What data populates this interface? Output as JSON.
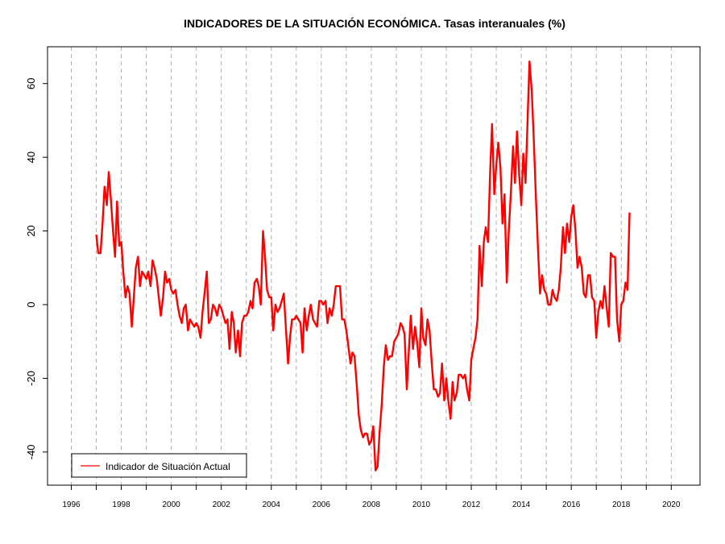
{
  "chart_data": {
    "type": "line",
    "title": "INDICADORES DE LA SITUACIÓN ECONÓMICA. Tasas interanuales (%)",
    "xlabel": "",
    "ylabel": "",
    "xlim": [
      1995.05,
      2021.15
    ],
    "ylim": [
      -49,
      70
    ],
    "x_ticks": [
      1996,
      1997,
      1998,
      1999,
      2000,
      2001,
      2002,
      2003,
      2004,
      2005,
      2006,
      2007,
      2008,
      2009,
      2010,
      2011,
      2012,
      2013,
      2014,
      2015,
      2016,
      2017,
      2018,
      2019,
      2020
    ],
    "x_tick_labels": [
      "1996",
      "1998",
      "2000",
      "2002",
      "2004",
      "2006",
      "2008",
      "2010",
      "2012",
      "2014",
      "2016",
      "2018",
      "2020"
    ],
    "y_ticks": [
      -40,
      -20,
      0,
      20,
      40,
      60
    ],
    "y_tick_labels": [
      "-40",
      "-20",
      "0",
      "20",
      "40",
      "60"
    ],
    "grid": "vertical dashed at each year",
    "legend": {
      "position": "bottom-left",
      "entries": [
        "Indicador de Situación Actual"
      ]
    },
    "series": [
      {
        "name": "Indicador de Situación Actual",
        "color": "#ff0000",
        "points": [
          [
            1997.0,
            19
          ],
          [
            1997.08,
            14
          ],
          [
            1997.17,
            14
          ],
          [
            1997.25,
            22
          ],
          [
            1997.33,
            32
          ],
          [
            1997.42,
            27
          ],
          [
            1997.5,
            36
          ],
          [
            1997.58,
            29
          ],
          [
            1997.67,
            20
          ],
          [
            1997.75,
            13
          ],
          [
            1997.83,
            28
          ],
          [
            1997.92,
            16
          ],
          [
            1998.0,
            17
          ],
          [
            1998.08,
            9
          ],
          [
            1998.17,
            2
          ],
          [
            1998.25,
            5
          ],
          [
            1998.33,
            3
          ],
          [
            1998.42,
            -6
          ],
          [
            1998.5,
            2
          ],
          [
            1998.58,
            10
          ],
          [
            1998.67,
            13
          ],
          [
            1998.75,
            5
          ],
          [
            1998.83,
            9
          ],
          [
            1998.92,
            8
          ],
          [
            1999.0,
            7
          ],
          [
            1999.08,
            9
          ],
          [
            1999.17,
            5
          ],
          [
            1999.25,
            12
          ],
          [
            1999.33,
            10
          ],
          [
            1999.42,
            7
          ],
          [
            1999.5,
            2
          ],
          [
            1999.58,
            -3
          ],
          [
            1999.67,
            2
          ],
          [
            1999.75,
            9
          ],
          [
            1999.83,
            6
          ],
          [
            1999.92,
            7
          ],
          [
            2000.0,
            4
          ],
          [
            2000.08,
            3
          ],
          [
            2000.17,
            4
          ],
          [
            2000.25,
            0
          ],
          [
            2000.33,
            -3
          ],
          [
            2000.42,
            -5
          ],
          [
            2000.5,
            -1
          ],
          [
            2000.58,
            0
          ],
          [
            2000.67,
            -7
          ],
          [
            2000.75,
            -4
          ],
          [
            2000.83,
            -5
          ],
          [
            2000.92,
            -6
          ],
          [
            2001.0,
            -5
          ],
          [
            2001.08,
            -6
          ],
          [
            2001.17,
            -9
          ],
          [
            2001.25,
            -2
          ],
          [
            2001.33,
            3
          ],
          [
            2001.42,
            9
          ],
          [
            2001.5,
            -5
          ],
          [
            2001.58,
            -4
          ],
          [
            2001.67,
            0
          ],
          [
            2001.75,
            -1
          ],
          [
            2001.83,
            -3
          ],
          [
            2001.92,
            0
          ],
          [
            2002.0,
            -1
          ],
          [
            2002.08,
            -3
          ],
          [
            2002.17,
            -5
          ],
          [
            2002.25,
            -4
          ],
          [
            2002.33,
            -12
          ],
          [
            2002.42,
            -2
          ],
          [
            2002.5,
            -5
          ],
          [
            2002.58,
            -13
          ],
          [
            2002.67,
            -7
          ],
          [
            2002.75,
            -14
          ],
          [
            2002.83,
            -5
          ],
          [
            2002.92,
            -3
          ],
          [
            2003.0,
            -3
          ],
          [
            2003.08,
            -2
          ],
          [
            2003.17,
            1
          ],
          [
            2003.25,
            -1
          ],
          [
            2003.33,
            6
          ],
          [
            2003.42,
            7
          ],
          [
            2003.5,
            5
          ],
          [
            2003.58,
            0
          ],
          [
            2003.67,
            20
          ],
          [
            2003.75,
            13
          ],
          [
            2003.83,
            4
          ],
          [
            2003.92,
            2
          ],
          [
            2004.0,
            2
          ],
          [
            2004.08,
            -7
          ],
          [
            2004.17,
            0
          ],
          [
            2004.25,
            -2
          ],
          [
            2004.33,
            -1
          ],
          [
            2004.42,
            1
          ],
          [
            2004.5,
            3
          ],
          [
            2004.58,
            -6
          ],
          [
            2004.67,
            -16
          ],
          [
            2004.75,
            -9
          ],
          [
            2004.83,
            -4
          ],
          [
            2004.92,
            -4
          ],
          [
            2005.0,
            -3
          ],
          [
            2005.08,
            -4
          ],
          [
            2005.17,
            -5
          ],
          [
            2005.25,
            -13
          ],
          [
            2005.33,
            -1
          ],
          [
            2005.42,
            -7
          ],
          [
            2005.5,
            -3
          ],
          [
            2005.58,
            0
          ],
          [
            2005.67,
            -4
          ],
          [
            2005.75,
            -5
          ],
          [
            2005.83,
            -6
          ],
          [
            2005.92,
            1
          ],
          [
            2006.0,
            1
          ],
          [
            2006.08,
            0
          ],
          [
            2006.17,
            1
          ],
          [
            2006.25,
            -5
          ],
          [
            2006.33,
            -1
          ],
          [
            2006.42,
            -3
          ],
          [
            2006.5,
            0
          ],
          [
            2006.58,
            5
          ],
          [
            2006.67,
            5
          ],
          [
            2006.75,
            5
          ],
          [
            2006.83,
            -4
          ],
          [
            2006.92,
            -4
          ],
          [
            2007.0,
            -7
          ],
          [
            2007.08,
            -11
          ],
          [
            2007.17,
            -16
          ],
          [
            2007.25,
            -13
          ],
          [
            2007.33,
            -14
          ],
          [
            2007.42,
            -22
          ],
          [
            2007.5,
            -30
          ],
          [
            2007.58,
            -34
          ],
          [
            2007.67,
            -36
          ],
          [
            2007.75,
            -35
          ],
          [
            2007.83,
            -35
          ],
          [
            2007.92,
            -38
          ],
          [
            2008.0,
            -37
          ],
          [
            2008.08,
            -33
          ],
          [
            2008.17,
            -45
          ],
          [
            2008.25,
            -44
          ],
          [
            2008.33,
            -35
          ],
          [
            2008.42,
            -27
          ],
          [
            2008.5,
            -17
          ],
          [
            2008.58,
            -11
          ],
          [
            2008.67,
            -15
          ],
          [
            2008.75,
            -14
          ],
          [
            2008.83,
            -14
          ],
          [
            2008.92,
            -10
          ],
          [
            2009.0,
            -9
          ],
          [
            2009.08,
            -8
          ],
          [
            2009.17,
            -5
          ],
          [
            2009.25,
            -6
          ],
          [
            2009.33,
            -8
          ],
          [
            2009.42,
            -23
          ],
          [
            2009.5,
            -13
          ],
          [
            2009.58,
            -3
          ],
          [
            2009.67,
            -12
          ],
          [
            2009.75,
            -6
          ],
          [
            2009.83,
            -10
          ],
          [
            2009.92,
            -17
          ],
          [
            2010.0,
            -1
          ],
          [
            2010.08,
            -9
          ],
          [
            2010.17,
            -11
          ],
          [
            2010.25,
            -4
          ],
          [
            2010.33,
            -7
          ],
          [
            2010.42,
            -16
          ],
          [
            2010.5,
            -23
          ],
          [
            2010.58,
            -23
          ],
          [
            2010.67,
            -25
          ],
          [
            2010.75,
            -24
          ],
          [
            2010.83,
            -16
          ],
          [
            2010.92,
            -26
          ],
          [
            2011.0,
            -20
          ],
          [
            2011.08,
            -26
          ],
          [
            2011.17,
            -31
          ],
          [
            2011.25,
            -21
          ],
          [
            2011.33,
            -26
          ],
          [
            2011.42,
            -24
          ],
          [
            2011.5,
            -19
          ],
          [
            2011.58,
            -19
          ],
          [
            2011.67,
            -20
          ],
          [
            2011.75,
            -19
          ],
          [
            2011.83,
            -23
          ],
          [
            2011.92,
            -26
          ],
          [
            2012.0,
            -15
          ],
          [
            2012.08,
            -12
          ],
          [
            2012.17,
            -9
          ],
          [
            2012.25,
            -4
          ],
          [
            2012.33,
            16
          ],
          [
            2012.42,
            5
          ],
          [
            2012.5,
            17
          ],
          [
            2012.58,
            21
          ],
          [
            2012.67,
            17
          ],
          [
            2012.75,
            35
          ],
          [
            2012.83,
            49
          ],
          [
            2012.92,
            30
          ],
          [
            2013.0,
            38
          ],
          [
            2013.08,
            44
          ],
          [
            2013.17,
            37
          ],
          [
            2013.25,
            22
          ],
          [
            2013.33,
            30
          ],
          [
            2013.42,
            6
          ],
          [
            2013.5,
            20
          ],
          [
            2013.58,
            30
          ],
          [
            2013.67,
            43
          ],
          [
            2013.75,
            33
          ],
          [
            2013.83,
            47
          ],
          [
            2013.92,
            35
          ],
          [
            2014.0,
            27
          ],
          [
            2014.08,
            41
          ],
          [
            2014.17,
            33
          ],
          [
            2014.25,
            50
          ],
          [
            2014.33,
            66
          ],
          [
            2014.42,
            58
          ],
          [
            2014.5,
            45
          ],
          [
            2014.58,
            30
          ],
          [
            2014.67,
            15
          ],
          [
            2014.75,
            3
          ],
          [
            2014.83,
            8
          ],
          [
            2014.92,
            4
          ],
          [
            2015.0,
            3
          ],
          [
            2015.08,
            0
          ],
          [
            2015.17,
            0
          ],
          [
            2015.25,
            4
          ],
          [
            2015.33,
            2
          ],
          [
            2015.42,
            1
          ],
          [
            2015.5,
            4
          ],
          [
            2015.58,
            10
          ],
          [
            2015.67,
            21
          ],
          [
            2015.75,
            14
          ],
          [
            2015.83,
            22
          ],
          [
            2015.92,
            17
          ],
          [
            2016.0,
            24
          ],
          [
            2016.08,
            27
          ],
          [
            2016.17,
            20
          ],
          [
            2016.25,
            10
          ],
          [
            2016.33,
            13
          ],
          [
            2016.42,
            10
          ],
          [
            2016.5,
            3
          ],
          [
            2016.58,
            2
          ],
          [
            2016.67,
            8
          ],
          [
            2016.75,
            8
          ],
          [
            2016.83,
            2
          ],
          [
            2016.92,
            1
          ],
          [
            2017.0,
            -9
          ],
          [
            2017.08,
            -2
          ],
          [
            2017.17,
            1
          ],
          [
            2017.25,
            -1
          ],
          [
            2017.33,
            5
          ],
          [
            2017.42,
            -1
          ],
          [
            2017.5,
            -6
          ],
          [
            2017.58,
            14
          ],
          [
            2017.67,
            13
          ],
          [
            2017.75,
            13
          ],
          [
            2017.83,
            -4
          ],
          [
            2017.92,
            -10
          ],
          [
            2018.0,
            0
          ],
          [
            2018.08,
            1
          ],
          [
            2018.17,
            6
          ],
          [
            2018.25,
            4
          ],
          [
            2018.33,
            25
          ]
        ]
      }
    ]
  }
}
